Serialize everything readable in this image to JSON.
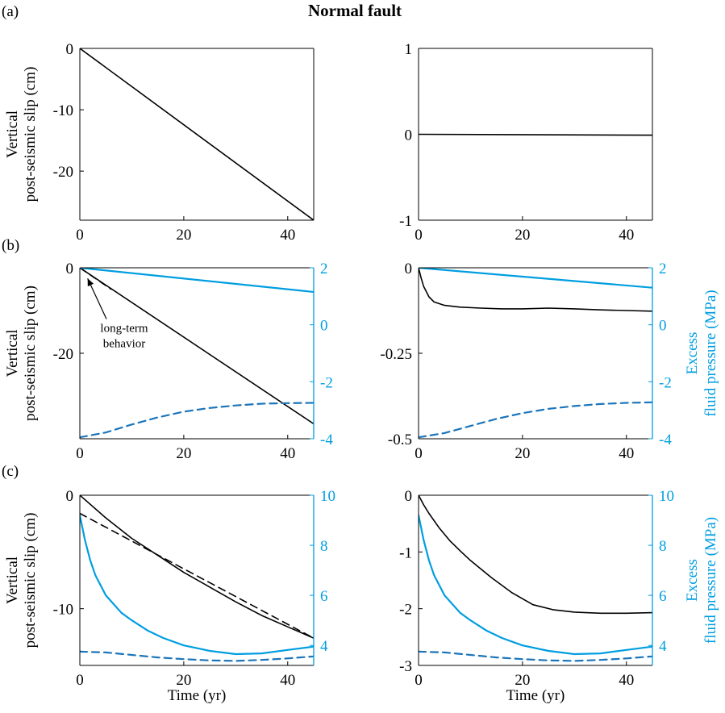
{
  "title": "Normal fault",
  "colors": {
    "black": "#000000",
    "blue": "#009ee0",
    "dark_blue": "#1b75bb"
  },
  "chart_data": [
    {
      "id": "a-left",
      "panel_label": "(a)",
      "type": "line",
      "xlim": [
        0,
        45
      ],
      "xticks": [
        "0",
        "20",
        "40"
      ],
      "xlabel": "",
      "ylim": [
        -28,
        0
      ],
      "yticks": [
        {
          "v": 0,
          "t": "0"
        },
        {
          "v": -10,
          "t": "-10"
        },
        {
          "v": -20,
          "t": "-20"
        }
      ],
      "ylabel": [
        "Vertical",
        "post-seismic slip (cm)"
      ],
      "series": [
        {
          "name": "slip",
          "axis": "left",
          "color": "black",
          "dash": false,
          "x": [
            0,
            45
          ],
          "y": [
            0,
            -28
          ]
        }
      ]
    },
    {
      "id": "a-right",
      "panel_label": "",
      "type": "line",
      "xlim": [
        0,
        45
      ],
      "xticks": [
        "0",
        "20",
        "40"
      ],
      "xlabel": "",
      "ylim": [
        -1,
        1
      ],
      "yticks": [
        {
          "v": 1,
          "t": "1"
        },
        {
          "v": 0,
          "t": "0"
        },
        {
          "v": -1,
          "t": "-1"
        }
      ],
      "series": [
        {
          "name": "slip",
          "axis": "left",
          "color": "black",
          "dash": false,
          "x": [
            0,
            45
          ],
          "y": [
            0,
            -0.01
          ]
        }
      ]
    },
    {
      "id": "b-left",
      "panel_label": "(b)",
      "type": "line",
      "xlim": [
        0,
        45
      ],
      "xticks": [
        "0",
        "20",
        "40"
      ],
      "xlabel": "",
      "ylim": [
        -40,
        0
      ],
      "yticks": [
        {
          "v": 0,
          "t": "0"
        },
        {
          "v": -20,
          "t": "-20"
        }
      ],
      "ylabel": [
        "Vertical",
        "post-seismic slip (cm)"
      ],
      "y2lim": [
        -4,
        2
      ],
      "y2ticks": [
        {
          "v": 2,
          "t": "2"
        },
        {
          "v": 0,
          "t": "0"
        },
        {
          "v": -2,
          "t": "-2"
        },
        {
          "v": -4,
          "t": "-4"
        }
      ],
      "annotation": {
        "lines": [
          "long-term",
          "behavior"
        ],
        "text_x": 4.5,
        "text_y": -13.5,
        "arrow_to_x": 1.5,
        "arrow_to_y": -2.5
      },
      "series": [
        {
          "name": "slip",
          "axis": "left",
          "color": "black",
          "dash": false,
          "x": [
            0,
            45
          ],
          "y": [
            0,
            -36.5
          ]
        },
        {
          "name": "long-term",
          "axis": "left",
          "color": "black",
          "dash": true,
          "x": [
            0,
            6
          ],
          "y": [
            0,
            -5
          ]
        },
        {
          "name": "pressure-top",
          "axis": "right",
          "color": "blue",
          "dash": false,
          "x": [
            0,
            45
          ],
          "y": [
            2,
            1.15
          ]
        },
        {
          "name": "pressure-bottom",
          "axis": "right",
          "color": "dark_blue",
          "dash": true,
          "x": [
            0,
            5,
            10,
            15,
            20,
            25,
            30,
            35,
            40,
            45
          ],
          "y": [
            -3.95,
            -3.78,
            -3.5,
            -3.25,
            -3.05,
            -2.92,
            -2.83,
            -2.77,
            -2.75,
            -2.74
          ]
        }
      ]
    },
    {
      "id": "b-right",
      "panel_label": "",
      "type": "line",
      "xlim": [
        0,
        45
      ],
      "xticks": [
        "0",
        "20",
        "40"
      ],
      "xlabel": "",
      "ylim": [
        -0.5,
        0
      ],
      "yticks": [
        {
          "v": 0,
          "t": "0"
        },
        {
          "v": -0.25,
          "t": "-0.25"
        },
        {
          "v": -0.5,
          "t": "-0.5"
        }
      ],
      "y2lim": [
        -4,
        2
      ],
      "y2ticks": [
        {
          "v": 2,
          "t": "2"
        },
        {
          "v": 0,
          "t": "0"
        },
        {
          "v": -2,
          "t": "-2"
        },
        {
          "v": -4,
          "t": "-4"
        }
      ],
      "y2label": [
        "Excess",
        "fluid pressure (MPa)"
      ],
      "series": [
        {
          "name": "slip",
          "axis": "left",
          "color": "black",
          "dash": false,
          "x": [
            0,
            0.5,
            1,
            2,
            3,
            5,
            8,
            12,
            16,
            20,
            25,
            30,
            35,
            40,
            45
          ],
          "y": [
            0,
            -0.03,
            -0.055,
            -0.085,
            -0.1,
            -0.11,
            -0.115,
            -0.118,
            -0.12,
            -0.12,
            -0.118,
            -0.12,
            -0.123,
            -0.125,
            -0.127
          ]
        },
        {
          "name": "pressure-top",
          "axis": "right",
          "color": "blue",
          "dash": false,
          "x": [
            0,
            45
          ],
          "y": [
            2,
            1.3
          ]
        },
        {
          "name": "pressure-bottom",
          "axis": "right",
          "color": "dark_blue",
          "dash": true,
          "x": [
            0,
            5,
            10,
            15,
            20,
            25,
            30,
            35,
            40,
            45
          ],
          "y": [
            -3.95,
            -3.8,
            -3.55,
            -3.3,
            -3.1,
            -2.95,
            -2.85,
            -2.78,
            -2.74,
            -2.72
          ]
        }
      ]
    },
    {
      "id": "c-left",
      "panel_label": "(c)",
      "type": "line",
      "xlim": [
        0,
        45
      ],
      "xticks": [
        "0",
        "20",
        "40"
      ],
      "xlabel": "Time (yr)",
      "ylim": [
        -15,
        0
      ],
      "yticks": [
        {
          "v": 0,
          "t": "0"
        },
        {
          "v": -10,
          "t": "-10"
        }
      ],
      "ylabel": [
        "Vertical",
        "post-seismic slip (cm)"
      ],
      "y2lim": [
        3.2,
        10
      ],
      "y2ticks": [
        {
          "v": 10,
          "t": "10"
        },
        {
          "v": 8,
          "t": "8"
        },
        {
          "v": 6,
          "t": "6"
        },
        {
          "v": 4,
          "t": "4"
        }
      ],
      "series": [
        {
          "name": "slip",
          "axis": "left",
          "color": "black",
          "dash": false,
          "x": [
            0,
            5,
            10,
            15,
            20,
            25,
            30,
            35,
            40,
            45
          ],
          "y": [
            0,
            -2.0,
            -3.8,
            -5.3,
            -6.8,
            -8.1,
            -9.4,
            -10.6,
            -11.6,
            -12.6
          ]
        },
        {
          "name": "long-term",
          "axis": "left",
          "color": "black",
          "dash": true,
          "x": [
            0,
            45
          ],
          "y": [
            -1.6,
            -12.6
          ]
        },
        {
          "name": "pressure-solid",
          "axis": "right",
          "color": "blue",
          "dash": false,
          "x": [
            0,
            0.5,
            1,
            2,
            3,
            5,
            8,
            10,
            13,
            16,
            20,
            25,
            30,
            35,
            40,
            45
          ],
          "y": [
            9.2,
            8.7,
            8.2,
            7.4,
            6.8,
            6.0,
            5.3,
            5.0,
            4.6,
            4.3,
            4.0,
            3.78,
            3.65,
            3.68,
            3.82,
            3.95
          ]
        },
        {
          "name": "pressure-dashed",
          "axis": "right",
          "color": "dark_blue",
          "dash": true,
          "x": [
            0,
            5,
            10,
            15,
            20,
            25,
            30,
            35,
            40,
            45
          ],
          "y": [
            3.75,
            3.72,
            3.62,
            3.52,
            3.45,
            3.4,
            3.38,
            3.42,
            3.48,
            3.56
          ]
        }
      ]
    },
    {
      "id": "c-right",
      "panel_label": "",
      "type": "line",
      "xlim": [
        0,
        45
      ],
      "xticks": [
        "0",
        "20",
        "40"
      ],
      "xlabel": "Time (yr)",
      "ylim": [
        -3,
        0
      ],
      "yticks": [
        {
          "v": 0,
          "t": "0"
        },
        {
          "v": -1,
          "t": "-1"
        },
        {
          "v": -2,
          "t": "-2"
        },
        {
          "v": -3,
          "t": "-3"
        }
      ],
      "y2lim": [
        3.2,
        10
      ],
      "y2ticks": [
        {
          "v": 10,
          "t": "10"
        },
        {
          "v": 8,
          "t": "8"
        },
        {
          "v": 6,
          "t": "6"
        },
        {
          "v": 4,
          "t": "4"
        }
      ],
      "y2label": [
        "Excess",
        "fluid pressure (MPa)"
      ],
      "series": [
        {
          "name": "slip",
          "axis": "left",
          "color": "black",
          "dash": false,
          "x": [
            0,
            1,
            2,
            4,
            6,
            8,
            10,
            14,
            18,
            22,
            26,
            30,
            35,
            40,
            45
          ],
          "y": [
            0,
            -0.17,
            -0.32,
            -0.58,
            -0.8,
            -0.98,
            -1.15,
            -1.45,
            -1.72,
            -1.93,
            -2.02,
            -2.06,
            -2.08,
            -2.08,
            -2.07
          ]
        },
        {
          "name": "pressure-solid",
          "axis": "right",
          "color": "blue",
          "dash": false,
          "x": [
            0,
            0.5,
            1,
            2,
            3,
            5,
            8,
            10,
            13,
            16,
            20,
            25,
            30,
            35,
            40,
            45
          ],
          "y": [
            9.2,
            8.7,
            8.2,
            7.4,
            6.8,
            6.0,
            5.3,
            5.0,
            4.6,
            4.3,
            4.0,
            3.78,
            3.65,
            3.68,
            3.82,
            3.95
          ]
        },
        {
          "name": "pressure-dashed",
          "axis": "right",
          "color": "dark_blue",
          "dash": true,
          "x": [
            0,
            5,
            10,
            15,
            20,
            25,
            30,
            35,
            40,
            45
          ],
          "y": [
            3.75,
            3.72,
            3.62,
            3.52,
            3.45,
            3.4,
            3.38,
            3.42,
            3.48,
            3.56
          ]
        }
      ]
    }
  ]
}
